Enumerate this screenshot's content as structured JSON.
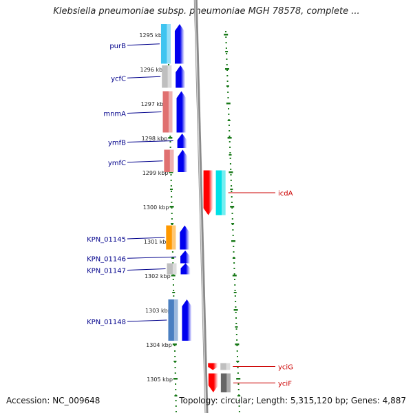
{
  "title": "Klebsiella pneumoniae subsp. pneumoniae MGH 78578, complete ...",
  "accession": "Accession: NC_009648",
  "summary": "Topology: circular; Length: 5,315,120 bp; Genes: 4,887",
  "colors": {
    "forward_strand": "#0000ee",
    "reverse_strand": "#ff0000",
    "forward_label": "#00008b",
    "reverse_label": "#cc0000",
    "tick": "#1a7a1a",
    "backbone": "#8a8a8a"
  },
  "ruler": {
    "unit": "kbp",
    "start_kbp": 1294.7,
    "end_kbp": 1305.85,
    "ticks": [
      {
        "label": "1295 kbp",
        "kbp": 1295
      },
      {
        "label": "1296 kbp",
        "kbp": 1296
      },
      {
        "label": "1297 kbp",
        "kbp": 1297
      },
      {
        "label": "1298 kbp",
        "kbp": 1298
      },
      {
        "label": "1299 kbp",
        "kbp": 1299
      },
      {
        "label": "1300 kbp",
        "kbp": 1300
      },
      {
        "label": "1301 kbp",
        "kbp": 1301
      },
      {
        "label": "1302 kbp",
        "kbp": 1302
      },
      {
        "label": "1303 kbp",
        "kbp": 1303
      },
      {
        "label": "1304 kbp",
        "kbp": 1304
      },
      {
        "label": "1305 kbp",
        "kbp": 1305
      }
    ]
  },
  "genes": [
    {
      "name": "purB",
      "strand": "+",
      "start_kbp": 1294.7,
      "end_kbp": 1295.85,
      "cog_color": "#3ec4f0"
    },
    {
      "name": "ycfC",
      "strand": "+",
      "start_kbp": 1295.9,
      "end_kbp": 1296.55,
      "cog_color": "#bfbfbf"
    },
    {
      "name": "mnmA",
      "strand": "+",
      "start_kbp": 1296.65,
      "end_kbp": 1297.85,
      "cog_color": "#e07070"
    },
    {
      "name": "ymfB",
      "strand": "+",
      "start_kbp": 1297.88,
      "end_kbp": 1298.3,
      "cog_color": null
    },
    {
      "name": "ymfC",
      "strand": "+",
      "start_kbp": 1298.35,
      "end_kbp": 1299.0,
      "cog_color": "#e07070"
    },
    {
      "name": "icdA",
      "strand": "-",
      "start_kbp": 1298.95,
      "end_kbp": 1300.25,
      "cog_color": "#00e0e6"
    },
    {
      "name": "KPN_01145",
      "strand": "+",
      "start_kbp": 1300.55,
      "end_kbp": 1301.25,
      "cog_color": "#ff9900"
    },
    {
      "name": "KPN_01146",
      "strand": "+",
      "start_kbp": 1301.28,
      "end_kbp": 1301.65,
      "cog_color": null
    },
    {
      "name": "KPN_01147",
      "strand": "+",
      "start_kbp": 1301.65,
      "end_kbp": 1301.97,
      "cog_color": "#bfbfbf"
    },
    {
      "name": "KPN_01148",
      "strand": "+",
      "start_kbp": 1302.7,
      "end_kbp": 1303.9,
      "cog_color": "#4a7fc1"
    },
    {
      "name": "yciG",
      "strand": "-",
      "start_kbp": 1304.55,
      "end_kbp": 1304.75,
      "cog_color": "#bfbfbf"
    },
    {
      "name": "yciF",
      "strand": "-",
      "start_kbp": 1304.85,
      "end_kbp": 1305.4,
      "cog_color": "#666666"
    }
  ]
}
